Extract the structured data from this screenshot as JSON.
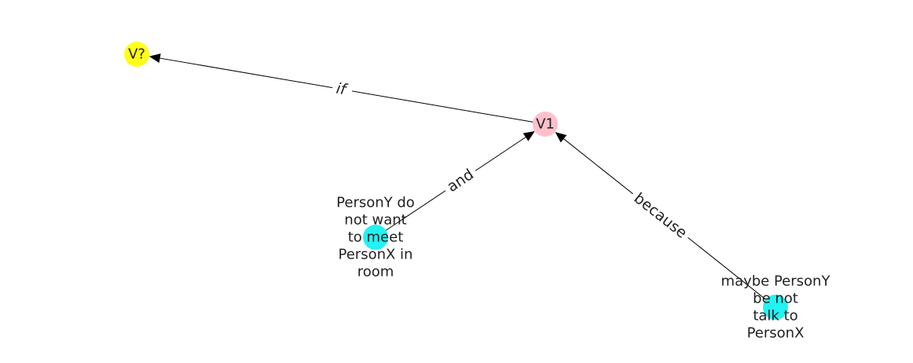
{
  "graph": {
    "nodes": [
      {
        "id": "vq",
        "label": [
          "V?"
        ],
        "color": "#ffff1a"
      },
      {
        "id": "v1",
        "label": [
          "V1"
        ],
        "color": "#ffc0cb"
      },
      {
        "id": "n1",
        "label": [
          "PersonY do",
          "not want",
          "to meet",
          "PersonX in",
          "room"
        ],
        "color": "#22f2f2"
      },
      {
        "id": "n2",
        "label": [
          "maybe PersonY",
          "be not",
          "talk to",
          "PersonX"
        ],
        "color": "#22f2f2"
      }
    ],
    "edges": [
      {
        "id": "e-if",
        "source": "v1",
        "target": "vq",
        "label": "if"
      },
      {
        "id": "e-and",
        "source": "n1",
        "target": "v1",
        "label": "and"
      },
      {
        "id": "e-because",
        "source": "n2",
        "target": "v1",
        "label": "because"
      }
    ]
  }
}
